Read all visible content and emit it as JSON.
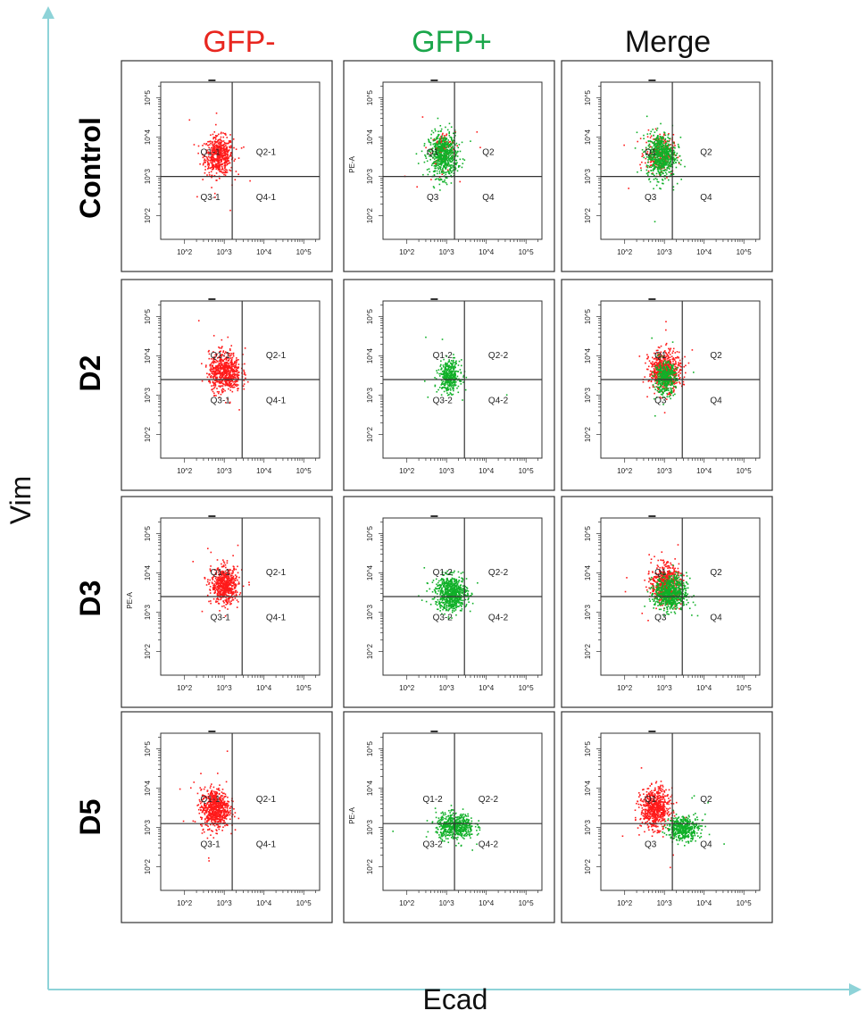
{
  "figure": {
    "y_axis_title": "Vim",
    "x_axis_title": "Ecad",
    "columns": [
      {
        "label": "GFP-",
        "color": "#e8261f"
      },
      {
        "label": "GFP+",
        "color": "#1aa64a"
      },
      {
        "label": "Merge",
        "color": "#111111"
      }
    ],
    "rows": [
      "Control",
      "D2",
      "D3",
      "D5"
    ]
  },
  "chart_data": {
    "type": "scatter",
    "description_axes": {
      "x": "Ecad",
      "y": "Vim",
      "scale": "log"
    },
    "xlim_log10": [
      1.4,
      5.4
    ],
    "ylim_log10": [
      1.4,
      5.4
    ],
    "tick_labels": [
      "10^2",
      "10^3",
      "10^4",
      "10^5"
    ],
    "colors": {
      "gfp_neg": "#ff1a1a",
      "gfp_pos": "#10b028",
      "axis": "#333333",
      "gate": "#333333"
    },
    "panels": [
      {
        "row": "Control",
        "column": "GFP-",
        "ylabel": "",
        "gate": {
          "x": 3.2,
          "y": 3.0
        },
        "quadrant_labels": [
          "Q1-1",
          "Q2-1",
          "Q3-1",
          "Q4-1"
        ],
        "populations": [
          {
            "color": "gfp_neg",
            "center": [
              2.85,
              3.55
            ],
            "spread": [
              0.18,
              0.24
            ],
            "n": 550
          }
        ]
      },
      {
        "row": "Control",
        "column": "GFP+",
        "ylabel": "PE-A",
        "gate": {
          "x": 3.2,
          "y": 3.0
        },
        "quadrant_labels": [
          "Q1",
          "Q2",
          "Q3",
          "Q4"
        ],
        "populations": [
          {
            "color": "gfp_neg",
            "center": [
              2.9,
              3.7
            ],
            "spread": [
              0.15,
              0.22
            ],
            "n": 140
          },
          {
            "color": "gfp_pos",
            "center": [
              2.9,
              3.55
            ],
            "spread": [
              0.18,
              0.28
            ],
            "n": 620
          }
        ]
      },
      {
        "row": "Control",
        "column": "Merge",
        "ylabel": "",
        "gate": {
          "x": 3.2,
          "y": 3.0
        },
        "quadrant_labels": [
          "Q1",
          "Q2",
          "Q3",
          "Q4"
        ],
        "populations": [
          {
            "color": "gfp_neg",
            "center": [
              2.85,
              3.6
            ],
            "spread": [
              0.18,
              0.24
            ],
            "n": 250
          },
          {
            "color": "gfp_pos",
            "center": [
              2.9,
              3.55
            ],
            "spread": [
              0.18,
              0.28
            ],
            "n": 620
          }
        ]
      },
      {
        "row": "D2",
        "column": "GFP-",
        "ylabel": "",
        "gate": {
          "x": 3.45,
          "y": 3.4
        },
        "quadrant_labels": [
          "Q1-1",
          "Q2-1",
          "Q3-1",
          "Q4-1"
        ],
        "populations": [
          {
            "color": "gfp_neg",
            "center": [
              3.0,
              3.6
            ],
            "spread": [
              0.2,
              0.25
            ],
            "n": 650
          }
        ]
      },
      {
        "row": "D2",
        "column": "GFP+",
        "ylabel": "",
        "gate": {
          "x": 3.45,
          "y": 3.4
        },
        "quadrant_labels": [
          "Q1-2",
          "Q2-2",
          "Q3-2",
          "Q4-2"
        ],
        "populations": [
          {
            "color": "gfp_pos",
            "center": [
              3.05,
              3.5
            ],
            "spread": [
              0.13,
              0.2
            ],
            "n": 380
          }
        ]
      },
      {
        "row": "D2",
        "column": "Merge",
        "ylabel": "",
        "gate": {
          "x": 3.45,
          "y": 3.4
        },
        "quadrant_labels": [
          "Q1",
          "Q2",
          "Q3",
          "Q4"
        ],
        "populations": [
          {
            "color": "gfp_neg",
            "center": [
              3.0,
              3.65
            ],
            "spread": [
              0.2,
              0.25
            ],
            "n": 600
          },
          {
            "color": "gfp_pos",
            "center": [
              3.0,
              3.45
            ],
            "spread": [
              0.13,
              0.2
            ],
            "n": 380
          }
        ]
      },
      {
        "row": "D3",
        "column": "GFP-",
        "ylabel": "PE-A",
        "gate": {
          "x": 3.45,
          "y": 3.4
        },
        "quadrant_labels": [
          "Q1-1",
          "Q2-1",
          "Q3-1",
          "Q4-1"
        ],
        "populations": [
          {
            "color": "gfp_neg",
            "center": [
              3.0,
              3.7
            ],
            "spread": [
              0.17,
              0.23
            ],
            "n": 600
          }
        ]
      },
      {
        "row": "D3",
        "column": "GFP+",
        "ylabel": "",
        "gate": {
          "x": 3.45,
          "y": 3.4
        },
        "quadrant_labels": [
          "Q1-2",
          "Q2-2",
          "Q3-2",
          "Q4-2"
        ],
        "populations": [
          {
            "color": "gfp_pos",
            "center": [
              3.1,
              3.5
            ],
            "spread": [
              0.2,
              0.22
            ],
            "n": 700
          }
        ]
      },
      {
        "row": "D3",
        "column": "Merge",
        "ylabel": "",
        "gate": {
          "x": 3.45,
          "y": 3.4
        },
        "quadrant_labels": [
          "Q1",
          "Q2",
          "Q3",
          "Q4"
        ],
        "populations": [
          {
            "color": "gfp_neg",
            "center": [
              3.0,
              3.75
            ],
            "spread": [
              0.17,
              0.23
            ],
            "n": 600
          },
          {
            "color": "gfp_pos",
            "center": [
              3.15,
              3.5
            ],
            "spread": [
              0.2,
              0.22
            ],
            "n": 700
          }
        ]
      },
      {
        "row": "D5",
        "column": "GFP-",
        "ylabel": "",
        "gate": {
          "x": 3.2,
          "y": 3.1
        },
        "quadrant_labels": [
          "Q1-1",
          "Q2-1",
          "Q3-1",
          "Q4-1"
        ],
        "populations": [
          {
            "color": "gfp_neg",
            "center": [
              2.75,
              3.5
            ],
            "spread": [
              0.18,
              0.25
            ],
            "n": 700
          }
        ]
      },
      {
        "row": "D5",
        "column": "GFP+",
        "ylabel": "PE-A",
        "gate": {
          "x": 3.2,
          "y": 3.1
        },
        "quadrant_labels": [
          "Q1-2",
          "Q2-2",
          "Q3-2",
          "Q4-2"
        ],
        "populations": [
          {
            "color": "gfp_pos",
            "center": [
              3.2,
              3.05
            ],
            "spread": [
              0.24,
              0.16
            ],
            "n": 550
          }
        ]
      },
      {
        "row": "D5",
        "column": "Merge",
        "ylabel": "",
        "gate": {
          "x": 3.2,
          "y": 3.1
        },
        "quadrant_labels": [
          "Q1",
          "Q2",
          "Q3",
          "Q4"
        ],
        "populations": [
          {
            "color": "gfp_neg",
            "center": [
              2.75,
              3.5
            ],
            "spread": [
              0.18,
              0.25
            ],
            "n": 650
          },
          {
            "color": "gfp_pos",
            "center": [
              3.45,
              3.0
            ],
            "spread": [
              0.2,
              0.15
            ],
            "n": 450
          }
        ]
      }
    ]
  }
}
